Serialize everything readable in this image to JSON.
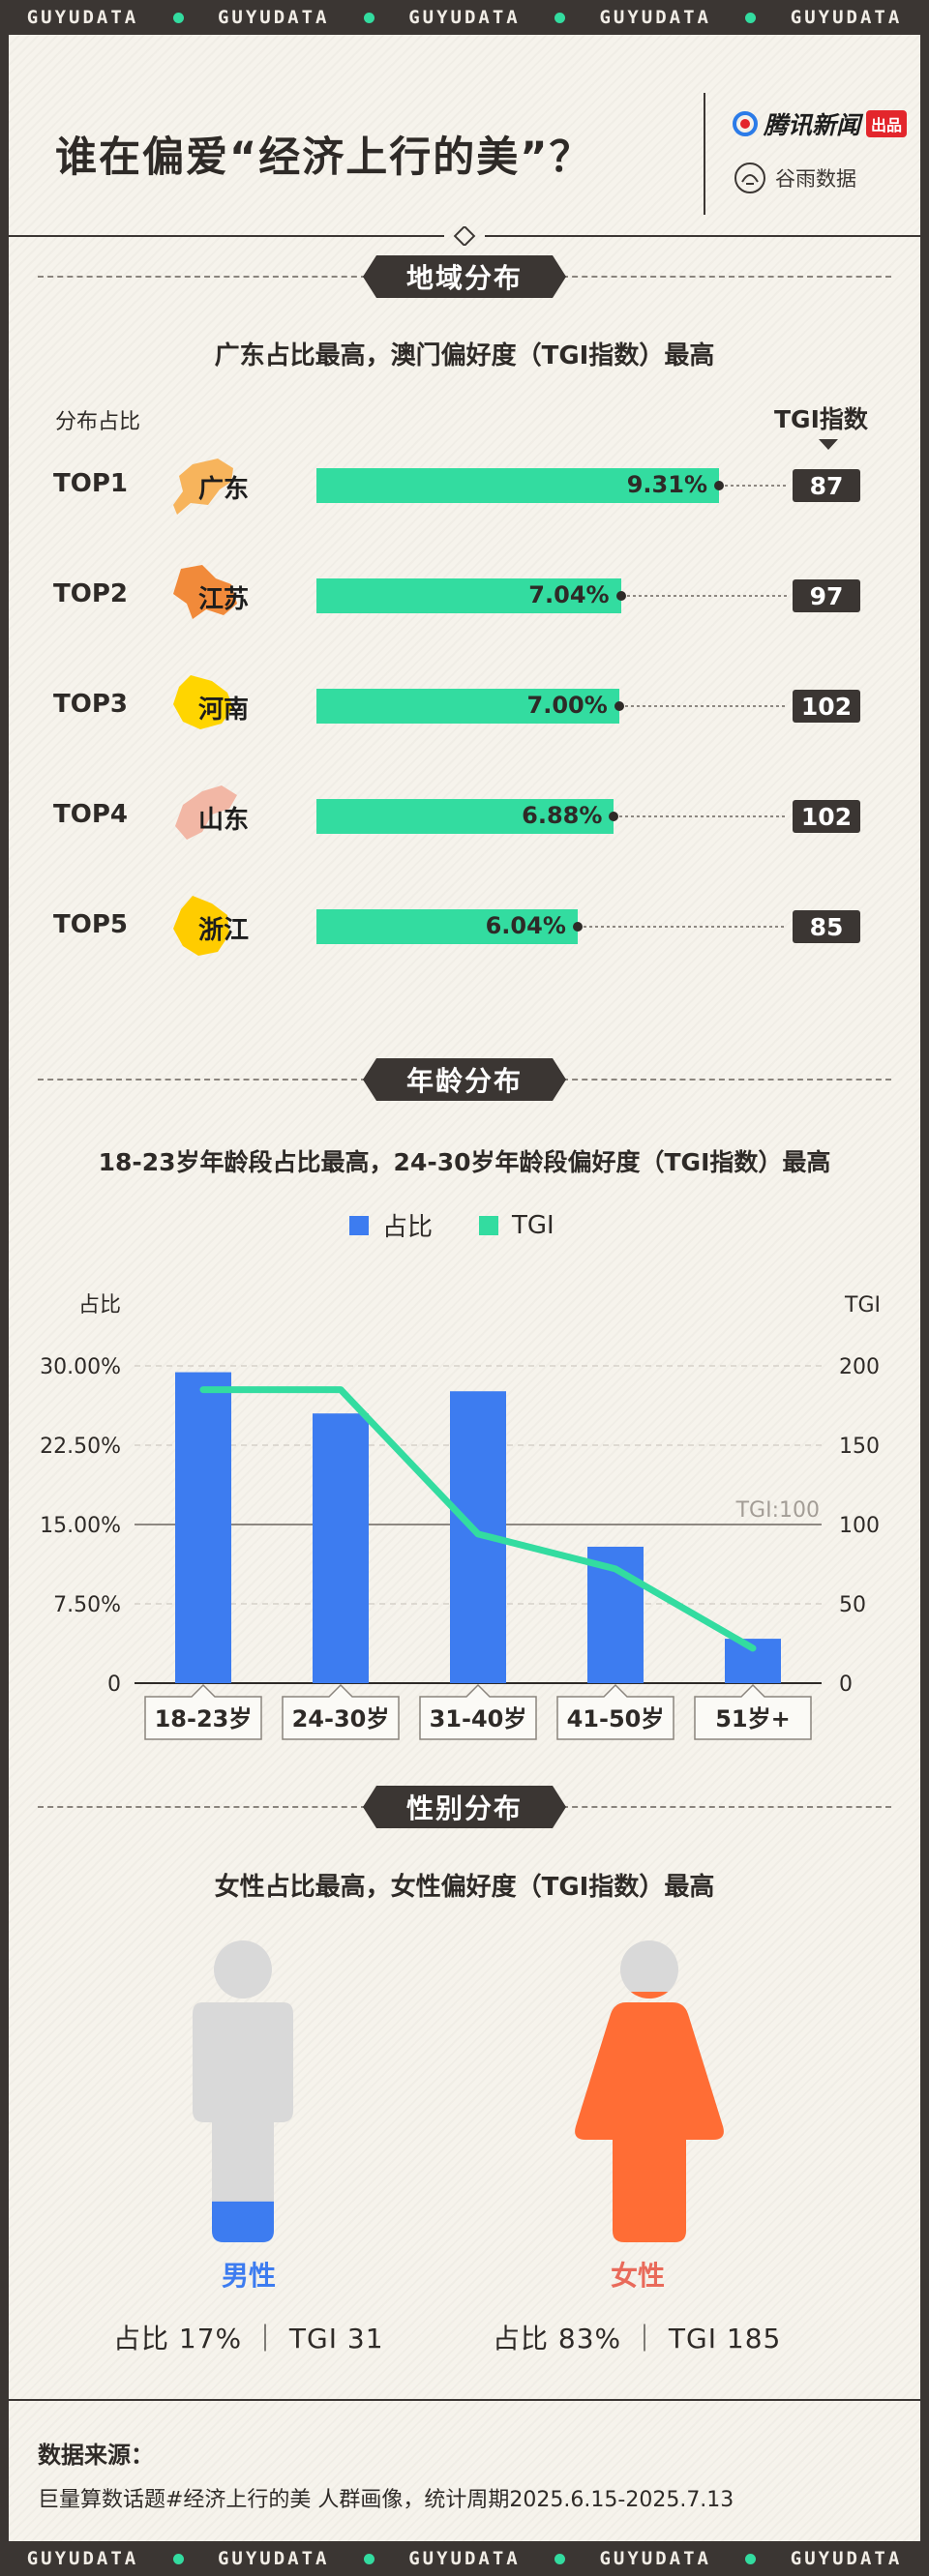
{
  "banner": {
    "word": "GUYUDATA",
    "repeat": 5
  },
  "header": {
    "title": "谁在偏爱“经济上行的美”？",
    "brand_primary": "腾讯新闻",
    "brand_primary_tag": "出品",
    "brand_secondary": "谷雨数据",
    "colors": {
      "accent_green": "#33dca0",
      "brand_red": "#e3262c"
    }
  },
  "region": {
    "section_title": "地域分布",
    "subtitle": "广东占比最高，澳门偏好度（TGI指数）最高",
    "share_label": "分布占比",
    "tgi_label": "TGI指数",
    "rows": [
      {
        "rank": "TOP1",
        "province": "广东",
        "share": "9.31%",
        "share_value": 9.31,
        "tgi": "87",
        "map_color": "#f7b45c"
      },
      {
        "rank": "TOP2",
        "province": "江苏",
        "share": "7.04%",
        "share_value": 7.04,
        "tgi": "97",
        "map_color": "#f18a3a"
      },
      {
        "rank": "TOP3",
        "province": "河南",
        "share": "7.00%",
        "share_value": 7.0,
        "tgi": "102",
        "map_color": "#ffd500"
      },
      {
        "rank": "TOP4",
        "province": "山东",
        "share": "6.88%",
        "share_value": 6.88,
        "tgi": "102",
        "map_color": "#f2b7a5"
      },
      {
        "rank": "TOP5",
        "province": "浙江",
        "share": "6.04%",
        "share_value": 6.04,
        "tgi": "85",
        "map_color": "#ffcc00"
      }
    ],
    "bar_color": "#33dca0"
  },
  "age": {
    "section_title": "年龄分布",
    "subtitle": "18-23岁年龄段占比最高，24-30岁年龄段偏好度（TGI指数）最高",
    "legend_share": "占比",
    "legend_tgi": "TGI",
    "left_axis_label": "占比",
    "right_axis_label": "TGI",
    "left_ticks": [
      "0",
      "7.50%",
      "15.00%",
      "22.50%",
      "30.00%"
    ],
    "right_ticks": [
      "0",
      "50",
      "100",
      "150",
      "200"
    ],
    "reference_label": "TGI:100"
  },
  "chart_data": {
    "type": "bar",
    "categories": [
      "18-23岁",
      "24-30岁",
      "31-40岁",
      "41-50岁",
      "51岁+"
    ],
    "series": [
      {
        "name": "占比",
        "values": [
          29.4,
          25.5,
          27.6,
          12.9,
          4.2
        ],
        "axis": "left",
        "type": "bar",
        "color": "#3d7cf0"
      },
      {
        "name": "TGI",
        "values": [
          185,
          185,
          94,
          72,
          22
        ],
        "axis": "right",
        "type": "line",
        "color": "#33dca0"
      }
    ],
    "ylim": [
      0,
      30
    ],
    "y2lim": [
      0,
      200
    ],
    "reference_line": 100,
    "legend": "top-center",
    "grid": true
  },
  "gender": {
    "section_title": "性别分布",
    "subtitle": "女性占比最高，女性偏好度（TGI指数）最高",
    "male": {
      "label": "男性",
      "stats": "占比 17%  ｜  TGI 31",
      "share_value": 17,
      "color": "#3d7cf0"
    },
    "female": {
      "label": "女性",
      "stats": "占比 83%  ｜  TGI 185",
      "share_value": 83,
      "color": "#ff6d35"
    }
  },
  "source": {
    "title": "数据来源：",
    "body": "巨量算数话题#经济上行的美 人群画像，统计周期2025.6.15-2025.7.13"
  }
}
